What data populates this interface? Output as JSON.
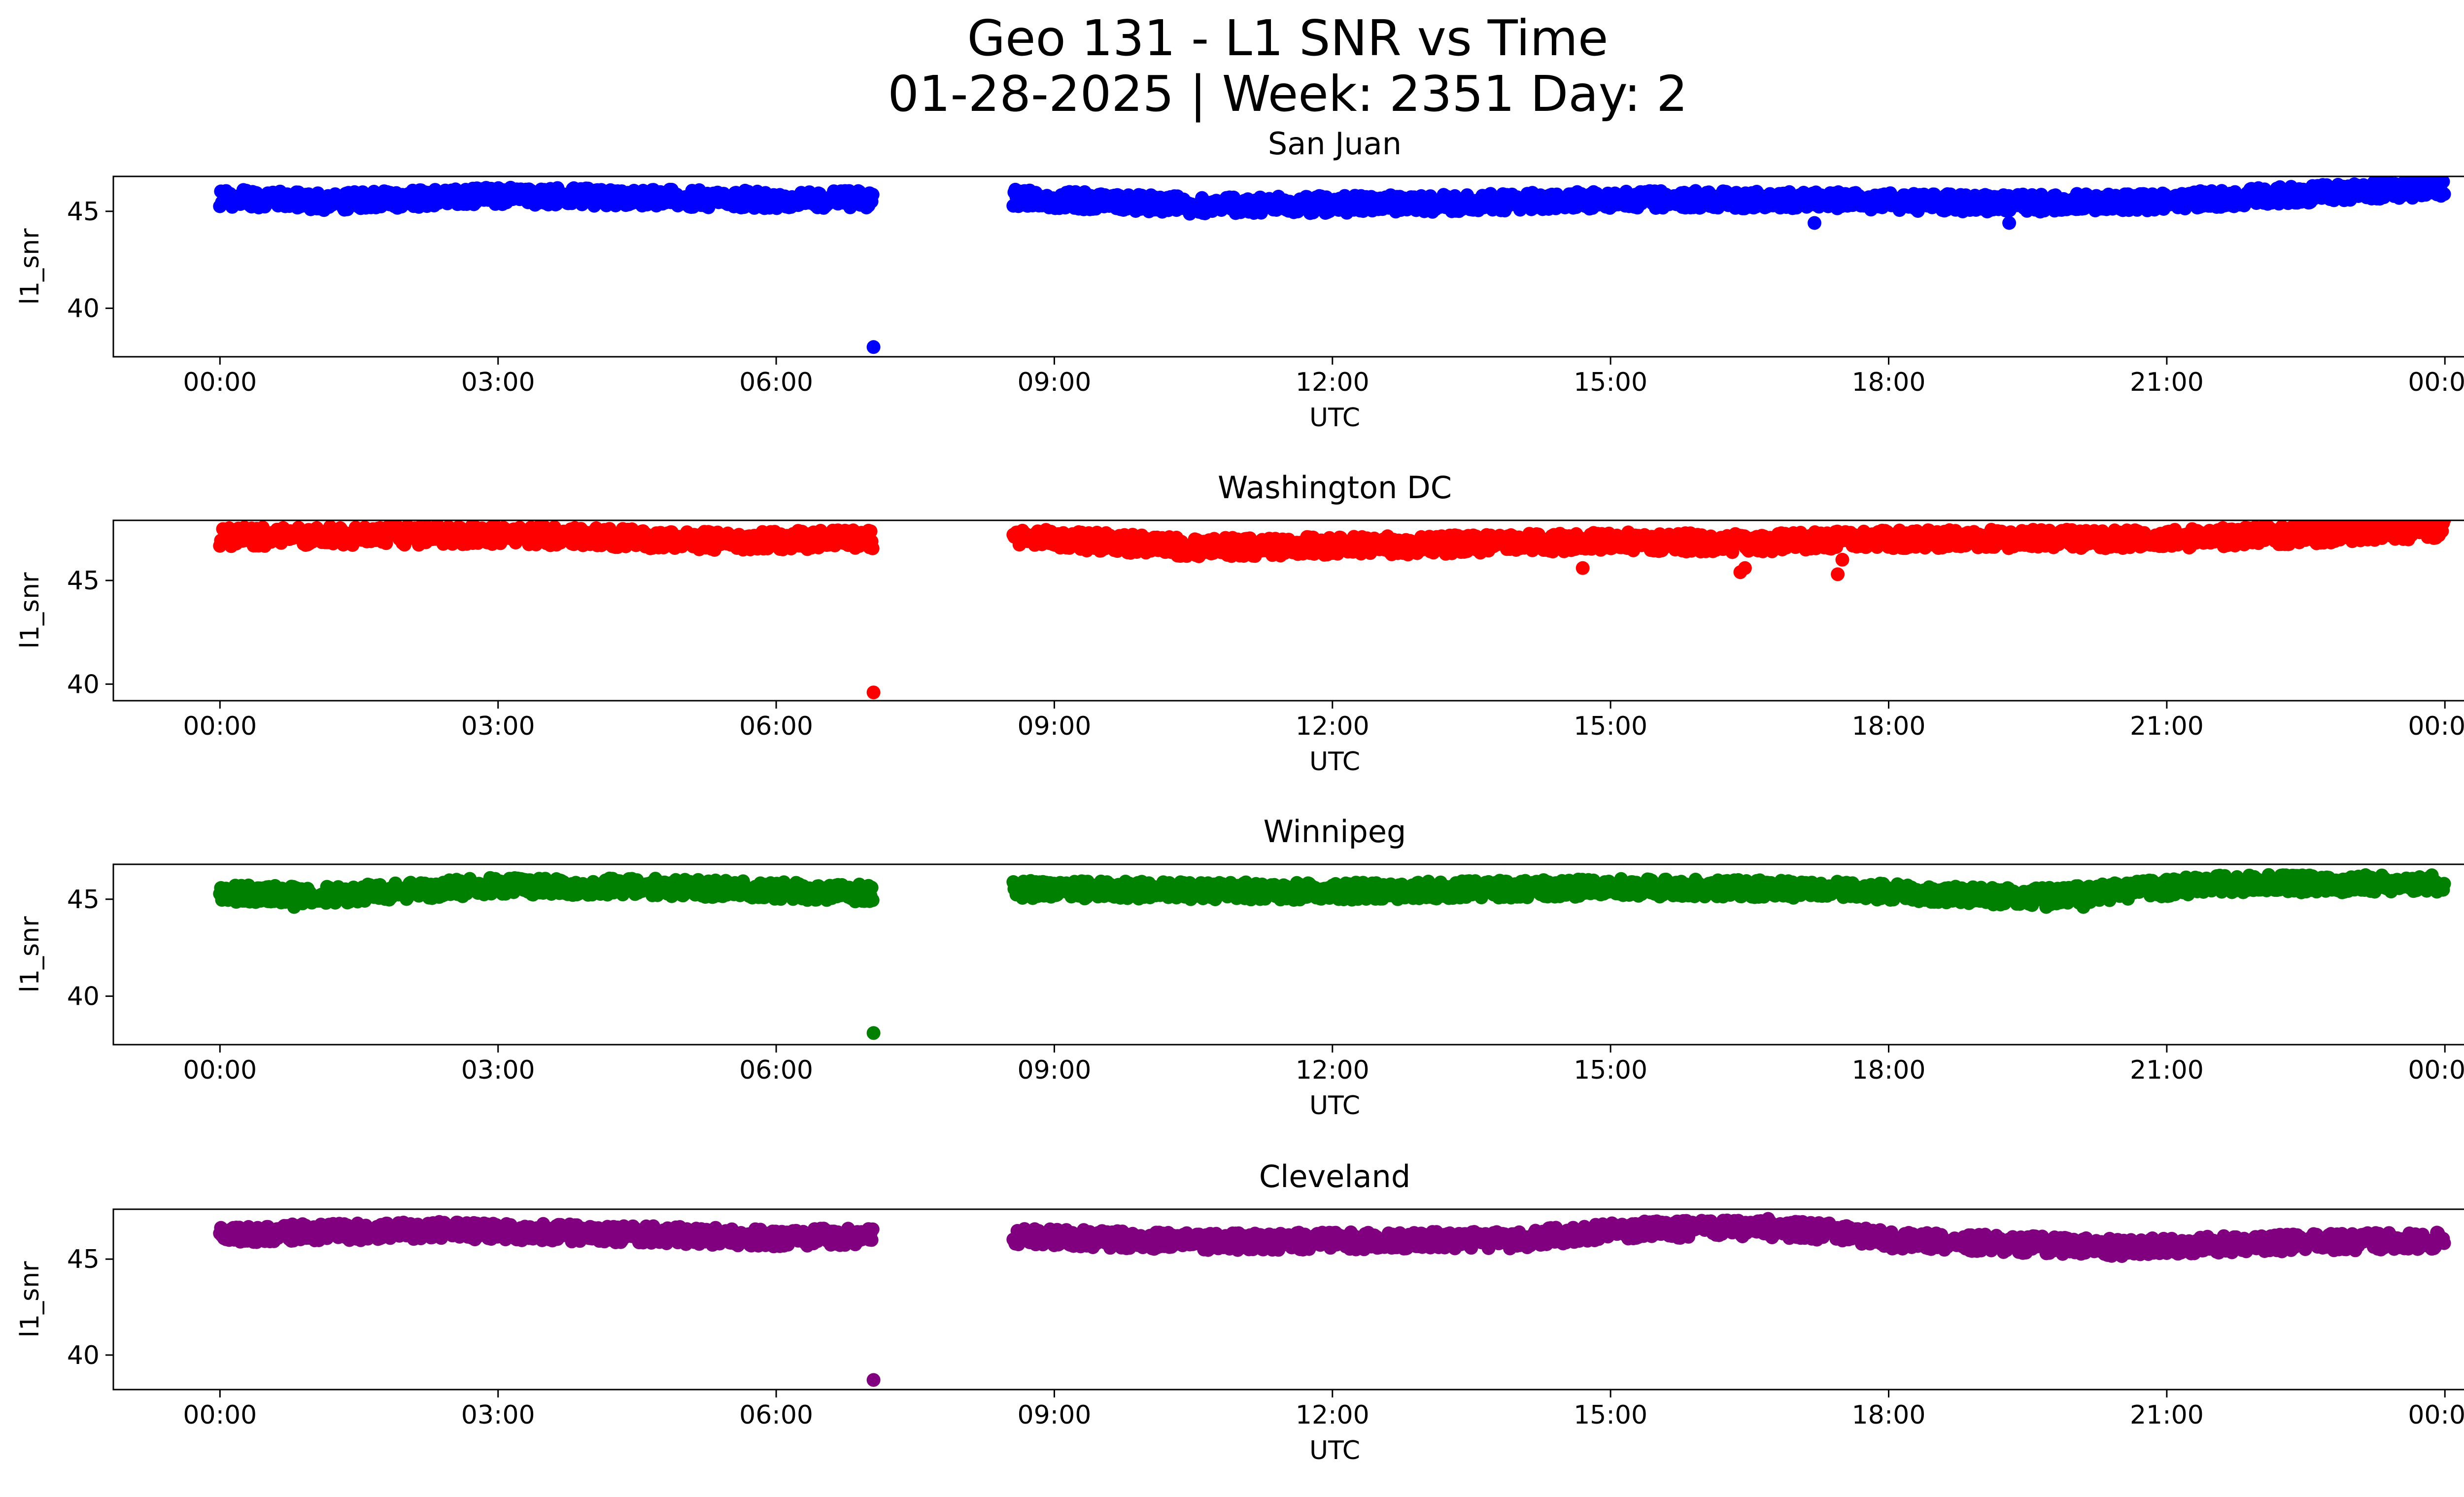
{
  "chart_data": {
    "type": "scatter",
    "title": "Geo 131 - L1 SNR vs Time",
    "subtitle": "01-28-2025 | Week: 2351 Day: 2",
    "xlabel": "UTC",
    "ylabel": "l1_snr",
    "x_ticks": [
      "00:00",
      "03:00",
      "06:00",
      "09:00",
      "12:00",
      "15:00",
      "18:00",
      "21:00",
      "00:00"
    ],
    "x_tick_hours": [
      0,
      3,
      6,
      9,
      12,
      15,
      18,
      21,
      24
    ],
    "xlim_hours": [
      -1.15,
      25.2
    ],
    "gap_hours": [
      7.05,
      8.55
    ],
    "panels": [
      {
        "name": "San Juan",
        "color": "#0000ff",
        "ylim": [
          37.5,
          46.8
        ],
        "yticks": [
          40,
          45
        ],
        "trend": [
          [
            0,
            45.7
          ],
          [
            1.2,
            45.5
          ],
          [
            3,
            45.8
          ],
          [
            6,
            45.6
          ],
          [
            7.05,
            45.6
          ],
          [
            8.55,
            45.7
          ],
          [
            10.5,
            45.3
          ],
          [
            13,
            45.4
          ],
          [
            15,
            45.6
          ],
          [
            17,
            45.6
          ],
          [
            19,
            45.4
          ],
          [
            21,
            45.5
          ],
          [
            23,
            46.0
          ],
          [
            24,
            46.2
          ]
        ],
        "outliers": [
          [
            7.05,
            38.0
          ],
          [
            17.2,
            44.4
          ],
          [
            19.3,
            44.4
          ]
        ],
        "spread": 0.45
      },
      {
        "name": "Washington DC",
        "color": "#ff0000",
        "ylim": [
          39.2,
          47.9
        ],
        "yticks": [
          40,
          45
        ],
        "trend": [
          [
            0,
            47.1
          ],
          [
            3,
            47.2
          ],
          [
            5.5,
            46.9
          ],
          [
            7.05,
            47.0
          ],
          [
            8.55,
            47.1
          ],
          [
            10.5,
            46.6
          ],
          [
            13,
            46.7
          ],
          [
            15,
            46.9
          ],
          [
            16.5,
            46.8
          ],
          [
            18,
            47.0
          ],
          [
            21,
            47.0
          ],
          [
            23,
            47.3
          ],
          [
            24,
            47.5
          ]
        ],
        "outliers": [
          [
            7.05,
            39.6
          ],
          [
            14.7,
            45.6
          ],
          [
            16.4,
            45.4
          ],
          [
            16.45,
            45.6
          ],
          [
            17.45,
            45.3
          ],
          [
            17.5,
            46.0
          ]
        ],
        "spread": 0.45
      },
      {
        "name": "Winnipeg",
        "color": "#008000",
        "ylim": [
          37.5,
          46.8
        ],
        "yticks": [
          40,
          45
        ],
        "trend": [
          [
            0,
            45.3
          ],
          [
            1.2,
            45.2
          ],
          [
            3,
            45.7
          ],
          [
            5,
            45.6
          ],
          [
            7.05,
            45.3
          ],
          [
            8.55,
            45.5
          ],
          [
            12,
            45.4
          ],
          [
            15,
            45.6
          ],
          [
            17.5,
            45.5
          ],
          [
            19.5,
            45.1
          ],
          [
            20.5,
            45.4
          ],
          [
            21.5,
            45.8
          ],
          [
            24,
            45.8
          ]
        ],
        "outliers": [
          [
            7.05,
            38.1
          ],
          [
            0.8,
            44.6
          ],
          [
            19.7,
            44.6
          ],
          [
            20.1,
            44.6
          ]
        ],
        "spread": 0.45
      },
      {
        "name": "Cleveland",
        "color": "#800080",
        "ylim": [
          38.2,
          47.6
        ],
        "yticks": [
          40,
          45
        ],
        "trend": [
          [
            0,
            46.3
          ],
          [
            2.3,
            46.5
          ],
          [
            4.5,
            46.3
          ],
          [
            6,
            46.1
          ],
          [
            7.05,
            46.2
          ],
          [
            8.55,
            46.2
          ],
          [
            10.5,
            45.9
          ],
          [
            14,
            46.0
          ],
          [
            15,
            46.5
          ],
          [
            16.5,
            46.6
          ],
          [
            17.5,
            46.4
          ],
          [
            18,
            46.0
          ],
          [
            20.5,
            45.6
          ],
          [
            22,
            45.8
          ],
          [
            24,
            46.0
          ]
        ],
        "outliers": [
          [
            7.05,
            38.7
          ],
          [
            16.7,
            47.1
          ]
        ],
        "spread": 0.45
      }
    ]
  }
}
